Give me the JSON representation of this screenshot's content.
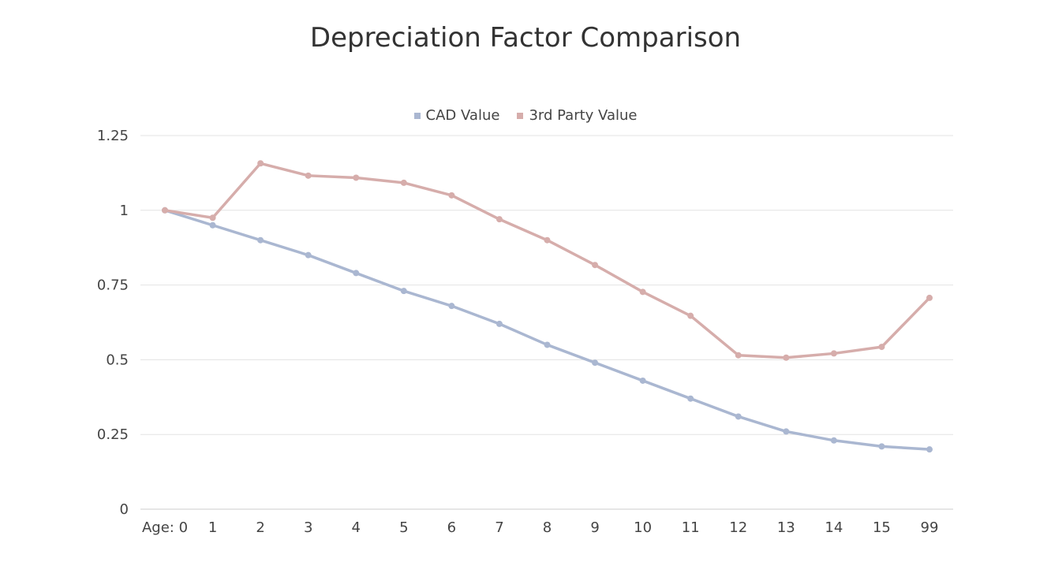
{
  "chart_data": {
    "type": "line",
    "title": "Depreciation Factor Comparison",
    "categories": [
      "Age: 0",
      "1",
      "2",
      "3",
      "4",
      "5",
      "6",
      "7",
      "8",
      "9",
      "10",
      "11",
      "12",
      "13",
      "14",
      "15",
      "99"
    ],
    "series": [
      {
        "name": "CAD Value",
        "color": "#aab7d1",
        "values": [
          1.0,
          0.95,
          0.9,
          0.85,
          0.79,
          0.73,
          0.68,
          0.62,
          0.55,
          0.49,
          0.43,
          0.37,
          0.31,
          0.26,
          0.23,
          0.21,
          0.2
        ]
      },
      {
        "name": "3rd Party Value",
        "color": "#d6adab",
        "values": [
          1.0,
          0.975,
          1.157,
          1.116,
          1.109,
          1.092,
          1.05,
          0.97,
          0.9,
          0.817,
          0.727,
          0.647,
          0.515,
          0.507,
          0.521,
          0.543,
          0.707
        ]
      }
    ],
    "y_ticks": [
      "0",
      "0.25",
      "0.5",
      "0.75",
      "1",
      "1.25"
    ],
    "ylim": [
      0,
      1.25
    ],
    "grid": true,
    "legend_position": "top-center",
    "xlabel": "",
    "ylabel": ""
  }
}
